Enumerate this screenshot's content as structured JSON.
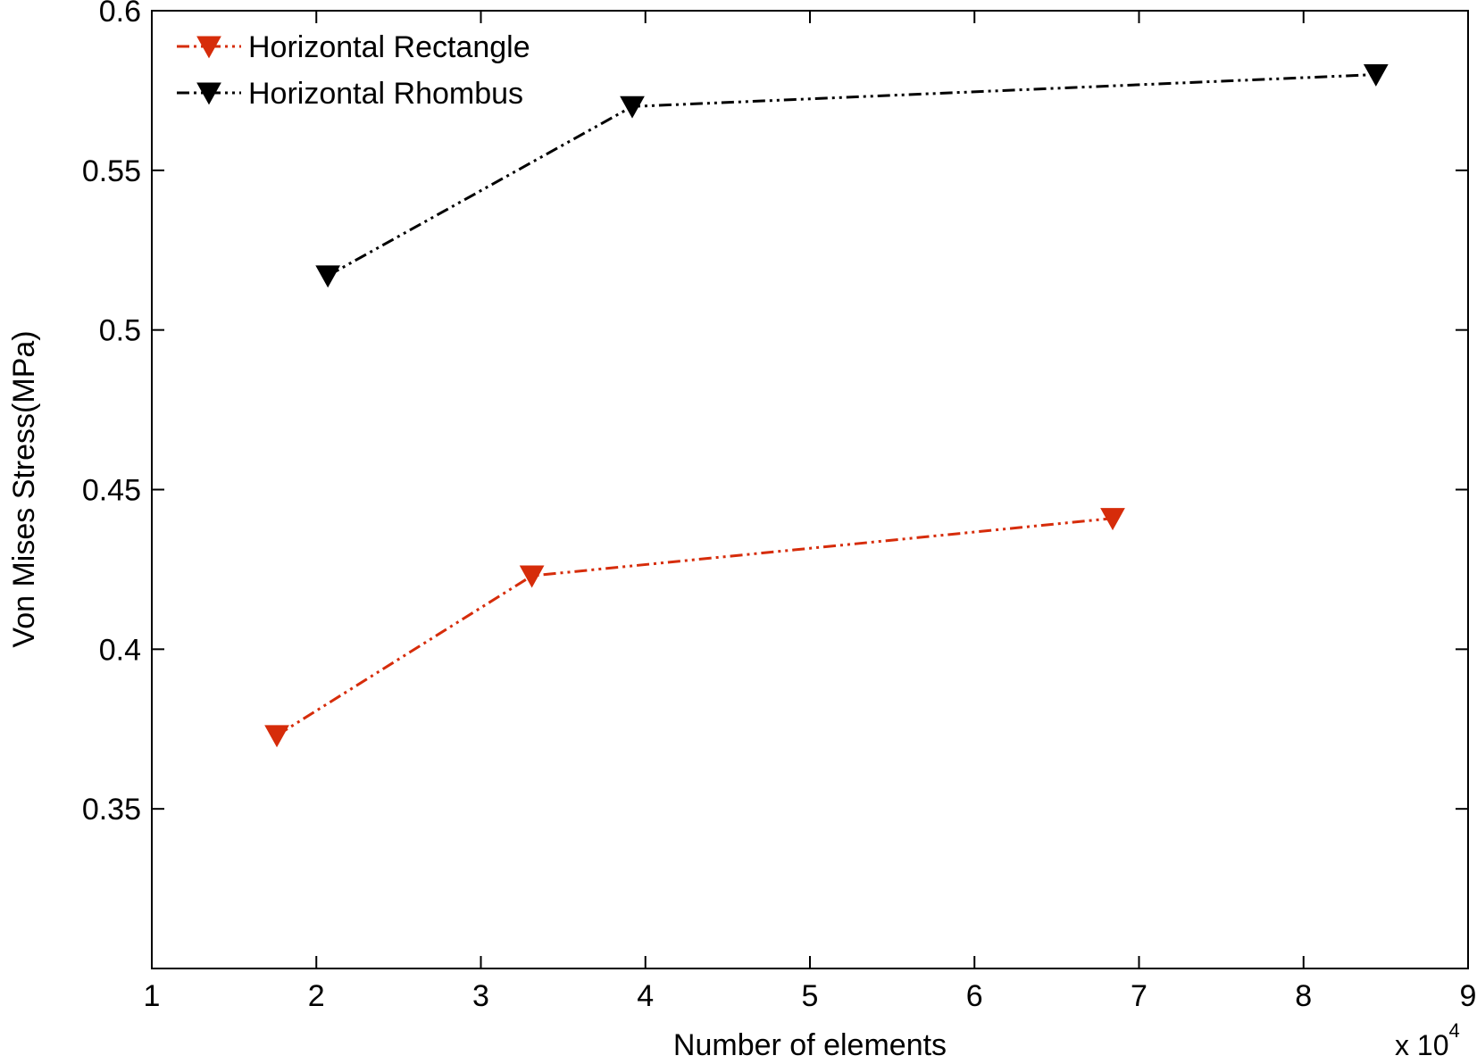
{
  "chart_data": {
    "type": "line",
    "title": "",
    "xlabel": "Number of elements",
    "ylabel": "Von Mises Stress(MPa)",
    "x_multiplier": {
      "base": "x 10",
      "exponent": "4"
    },
    "xlim": [
      1,
      9
    ],
    "ylim": [
      0.3,
      0.6
    ],
    "xticks": [
      1,
      2,
      3,
      4,
      5,
      6,
      7,
      8,
      9
    ],
    "yticks": [
      0.35,
      0.4,
      0.45,
      0.5,
      0.55,
      0.6
    ],
    "xtick_labels": [
      "1",
      "2",
      "3",
      "4",
      "5",
      "6",
      "7",
      "8",
      "9"
    ],
    "ytick_labels": [
      "0.35",
      "0.4",
      "0.45",
      "0.5",
      "0.55",
      "0.6"
    ],
    "grid": false,
    "legend_position": "top-left",
    "series": [
      {
        "name": "Horizontal Rectangle",
        "color": "#d62c0a",
        "marker": "triangle-down",
        "line_style": "dash-dot-dot",
        "x": [
          1.76,
          3.31,
          6.84
        ],
        "y": [
          0.373,
          0.423,
          0.441
        ]
      },
      {
        "name": "Horizontal Rhombus",
        "color": "#000000",
        "marker": "triangle-down",
        "line_style": "dash-dot-dot",
        "x": [
          2.07,
          3.92,
          8.44
        ],
        "y": [
          0.517,
          0.57,
          0.58
        ]
      }
    ]
  }
}
